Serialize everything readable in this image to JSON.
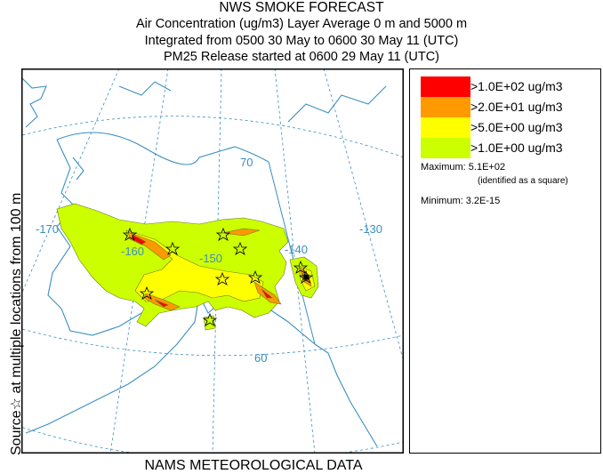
{
  "header": {
    "title": "NWS SMOKE FORECAST",
    "line1": "Air Concentration (ug/m3) Layer Average    0 m and  5000 m",
    "line2": "Integrated from 0500 30 May to 0600 30 May 11 (UTC)",
    "line3": "PM25 Release started at 0600 29 May 11 (UTC)"
  },
  "side_label": "Source☆  at multiple locations   from  100 m",
  "footer": "NAMS METEOROLOGICAL DATA",
  "map_labels": {
    "lon_170": "-170",
    "lon_160": "-160",
    "lon_150": "-150",
    "lon_140": "-140",
    "lon_130": "-130",
    "lat_70": "70",
    "lat_60": "60"
  },
  "legend": {
    "items": [
      {
        "label": ">1.0E+02 ug/m3",
        "color": "#ff0000"
      },
      {
        "label": ">2.0E+01 ug/m3",
        "color": "#ff9900"
      },
      {
        "label": ">5.0E+00 ug/m3",
        "color": "#ffff00"
      },
      {
        "label": ">1.0E+00 ug/m3",
        "color": "#ccff00"
      }
    ],
    "maximum": "Maximum: 5.1E+02",
    "maximum_note": "(identified as a square)",
    "minimum": "Minimum: 3.2E-15"
  },
  "colors": {
    "coast": "#3a8fc0",
    "grid": "#3a8fc0",
    "contour": "#6b7a2a"
  }
}
